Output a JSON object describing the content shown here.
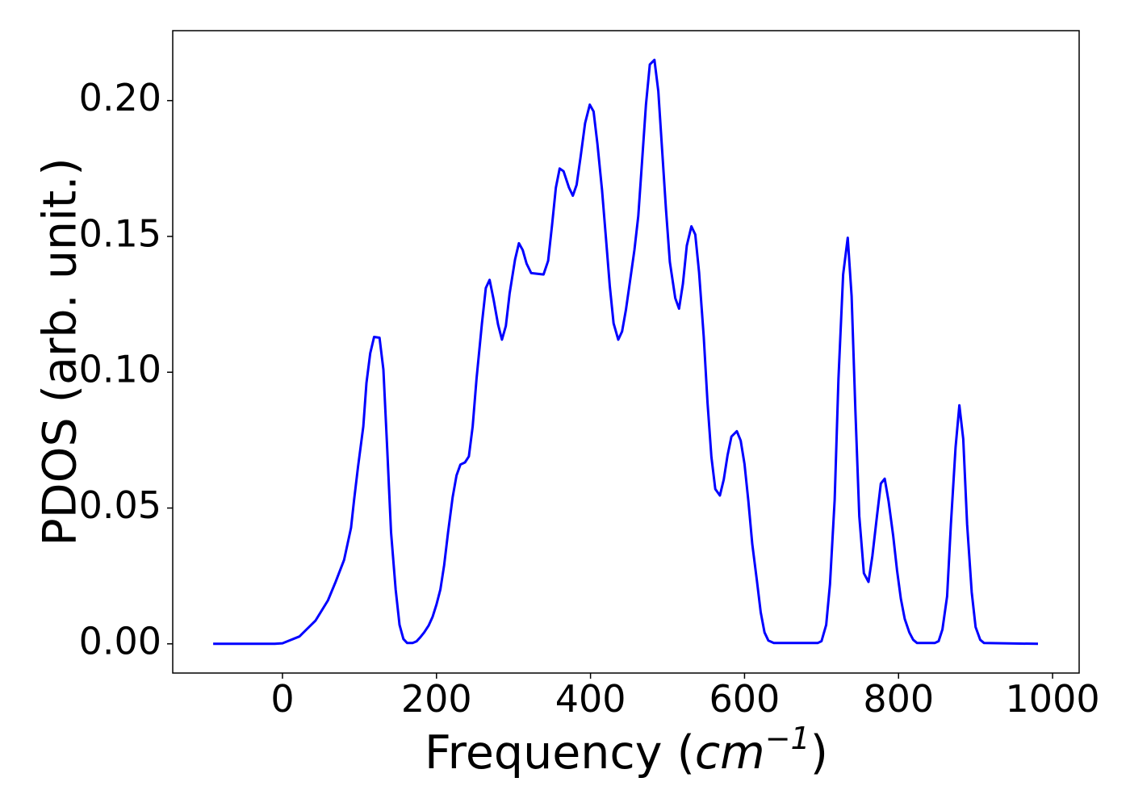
{
  "chart_data": {
    "type": "line",
    "xlabel": [
      "Frequency (",
      "cm",
      "−1",
      ")"
    ],
    "ylabel": "PDOS (arb. unit.)",
    "xlim": [
      -142.5,
      1034.5
    ],
    "ylim": [
      -0.01075,
      0.22575
    ],
    "xticks": [
      0,
      200,
      400,
      600,
      800,
      1000
    ],
    "yticks": [
      {
        "value": 0,
        "label": "0.00"
      },
      {
        "value": 0.05,
        "label": "0.05"
      },
      {
        "value": 0.1,
        "label": "0.10"
      },
      {
        "value": 0.15,
        "label": "0.15"
      },
      {
        "value": 0.2,
        "label": "0.20"
      }
    ],
    "color": "#0000ff",
    "x": [
      -90,
      -10,
      0,
      22,
      43,
      59,
      69,
      80,
      89,
      93,
      98,
      105,
      109,
      114,
      119,
      126,
      131,
      136,
      141,
      147,
      152,
      157,
      162,
      169,
      174,
      179,
      184,
      190,
      195,
      200,
      205,
      210,
      215,
      221,
      226,
      231,
      237,
      242,
      247,
      252,
      259,
      264,
      269,
      274,
      280,
      285,
      290,
      295,
      302,
      307,
      312,
      317,
      323,
      339,
      345,
      350,
      355,
      360,
      365,
      372,
      377,
      382,
      387,
      393,
      399,
      404,
      409,
      415,
      420,
      425,
      430,
      436,
      441,
      446,
      451,
      457,
      462,
      467,
      472,
      477,
      483,
      488,
      493,
      498,
      503,
      510,
      515,
      520,
      525,
      531,
      536,
      541,
      547,
      552,
      557,
      562,
      568,
      573,
      578,
      583,
      590,
      595,
      600,
      605,
      610,
      616,
      621,
      626,
      631,
      638,
      695,
      700,
      706,
      711,
      717,
      722,
      728,
      734,
      739,
      744,
      749,
      755,
      761,
      766,
      772,
      777,
      782,
      787,
      793,
      798,
      803,
      808,
      814,
      819,
      824,
      847,
      852,
      857,
      863,
      868,
      874,
      879,
      884,
      889,
      895,
      900,
      906,
      911,
      981
    ],
    "values": [
      0,
      0,
      0.0002,
      0.0027,
      0.0086,
      0.016,
      0.0228,
      0.0309,
      0.0427,
      0.053,
      0.065,
      0.08,
      0.096,
      0.107,
      0.113,
      0.1127,
      0.101,
      0.072,
      0.041,
      0.02,
      0.007,
      0.0018,
      0.0003,
      0.0003,
      0.0009,
      0.0024,
      0.0042,
      0.0068,
      0.01,
      0.0145,
      0.02,
      0.029,
      0.041,
      0.054,
      0.062,
      0.066,
      0.0668,
      0.069,
      0.08,
      0.0976,
      0.118,
      0.131,
      0.134,
      0.127,
      0.1175,
      0.112,
      0.117,
      0.129,
      0.1415,
      0.1475,
      0.145,
      0.14,
      0.1365,
      0.136,
      0.141,
      0.154,
      0.168,
      0.175,
      0.174,
      0.168,
      0.165,
      0.169,
      0.179,
      0.1917,
      0.1985,
      0.196,
      0.184,
      0.167,
      0.1495,
      0.1317,
      0.118,
      0.112,
      0.115,
      0.123,
      0.133,
      0.145,
      0.1575,
      0.1777,
      0.1985,
      0.2133,
      0.215,
      0.2035,
      0.182,
      0.16,
      0.1406,
      0.1273,
      0.1234,
      0.1326,
      0.1466,
      0.1537,
      0.1507,
      0.1368,
      0.113,
      0.0887,
      0.0688,
      0.057,
      0.0546,
      0.0605,
      0.0694,
      0.0763,
      0.0783,
      0.0748,
      0.0662,
      0.0525,
      0.0368,
      0.0234,
      0.0116,
      0.0042,
      0.0012,
      0.0003,
      0.0003,
      0.001,
      0.007,
      0.022,
      0.053,
      0.0976,
      0.136,
      0.1495,
      0.128,
      0.0857,
      0.047,
      0.026,
      0.0228,
      0.0323,
      0.047,
      0.059,
      0.0608,
      0.0525,
      0.0398,
      0.027,
      0.0166,
      0.0092,
      0.0042,
      0.0015,
      0.0003,
      0.0003,
      0.001,
      0.0053,
      0.0175,
      0.044,
      0.0724,
      0.0878,
      0.0754,
      0.044,
      0.019,
      0.0062,
      0.0015,
      0.0003,
      0
    ]
  }
}
